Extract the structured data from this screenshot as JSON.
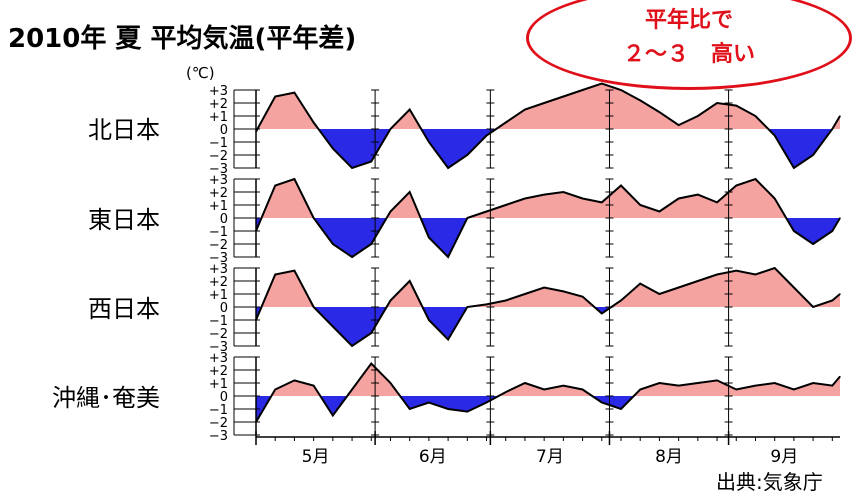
{
  "title": "2010年 夏 平均気温(平年差)",
  "unit_label": "(℃)",
  "badge": {
    "line1": "平年比で",
    "line2": "２～３　高い"
  },
  "source": "出典:気象庁",
  "colors": {
    "positive": "#f4a3a0",
    "negative": "#2a2ae6",
    "line": "#000000",
    "badge": "#e0101a"
  },
  "chart_data": [
    {
      "type": "area",
      "title": "北日本",
      "xlabel": "",
      "ylabel": "(℃)",
      "ylim": [
        -3,
        3
      ],
      "y_ticks": [
        "+3",
        "+2",
        "+1",
        "0",
        "−1",
        "−2",
        "−3"
      ],
      "x_categories": [
        "5月",
        "6月",
        "7月",
        "8月",
        "9月"
      ],
      "x": [
        0,
        5,
        10,
        15,
        20,
        25,
        30,
        35,
        40,
        45,
        50,
        55,
        60,
        65,
        70,
        75,
        80,
        85,
        90,
        95,
        100,
        105,
        110,
        115,
        120,
        125,
        130,
        135,
        140,
        145,
        150,
        152
      ],
      "values": [
        -0.2,
        2.5,
        2.8,
        0.5,
        -1.5,
        -3.0,
        -2.5,
        0.0,
        1.5,
        -1.0,
        -3.0,
        -2.0,
        -0.5,
        0.5,
        1.5,
        2.0,
        2.5,
        3.0,
        3.5,
        3.0,
        2.2,
        1.3,
        0.3,
        1.0,
        2.0,
        1.8,
        1.0,
        -0.5,
        -3.0,
        -2.0,
        0.0,
        1.0
      ]
    },
    {
      "type": "area",
      "title": "東日本",
      "xlabel": "",
      "ylabel": "",
      "ylim": [
        -3,
        3
      ],
      "y_ticks": [
        "+3",
        "+2",
        "+1",
        "0",
        "−1",
        "−2",
        "−3"
      ],
      "x_categories": [
        "5月",
        "6月",
        "7月",
        "8月",
        "9月"
      ],
      "x": [
        0,
        5,
        10,
        15,
        20,
        25,
        30,
        35,
        40,
        45,
        50,
        55,
        60,
        65,
        70,
        75,
        80,
        85,
        90,
        95,
        100,
        105,
        110,
        115,
        120,
        125,
        130,
        135,
        140,
        145,
        150,
        152
      ],
      "values": [
        -1.0,
        2.5,
        3.0,
        0.0,
        -2.0,
        -3.0,
        -2.0,
        0.5,
        2.0,
        -1.5,
        -3.0,
        0.0,
        0.5,
        1.0,
        1.5,
        1.8,
        2.0,
        1.5,
        1.2,
        2.5,
        1.0,
        0.5,
        1.5,
        1.8,
        1.2,
        2.5,
        3.0,
        1.5,
        -1.0,
        -2.0,
        -1.0,
        0.0
      ]
    },
    {
      "type": "area",
      "title": "西日本",
      "xlabel": "",
      "ylabel": "",
      "ylim": [
        -3,
        3
      ],
      "y_ticks": [
        "+3",
        "+2",
        "+1",
        "0",
        "−1",
        "−2",
        "−3"
      ],
      "x_categories": [
        "5月",
        "6月",
        "7月",
        "8月",
        "9月"
      ],
      "x": [
        0,
        5,
        10,
        15,
        20,
        25,
        30,
        35,
        40,
        45,
        50,
        55,
        60,
        65,
        70,
        75,
        80,
        85,
        90,
        95,
        100,
        105,
        110,
        115,
        120,
        125,
        130,
        135,
        140,
        145,
        150,
        152
      ],
      "values": [
        -1.0,
        2.5,
        2.8,
        0.0,
        -1.5,
        -3.0,
        -2.0,
        0.5,
        2.0,
        -1.0,
        -2.5,
        0.0,
        0.2,
        0.5,
        1.0,
        1.5,
        1.2,
        0.8,
        -0.5,
        0.5,
        1.8,
        1.0,
        1.5,
        2.0,
        2.5,
        2.8,
        2.5,
        3.0,
        1.5,
        0.0,
        0.5,
        1.0
      ]
    },
    {
      "type": "area",
      "title": "沖縄･奄美",
      "xlabel": "",
      "ylabel": "",
      "ylim": [
        -3,
        3
      ],
      "y_ticks": [
        "+3",
        "+2",
        "+1",
        "0",
        "−1",
        "−2",
        "−3"
      ],
      "x_categories": [
        "5月",
        "6月",
        "7月",
        "8月",
        "9月"
      ],
      "x": [
        0,
        5,
        10,
        15,
        20,
        25,
        30,
        35,
        40,
        45,
        50,
        55,
        60,
        65,
        70,
        75,
        80,
        85,
        90,
        95,
        100,
        105,
        110,
        115,
        120,
        125,
        130,
        135,
        140,
        145,
        150,
        152
      ],
      "values": [
        -2.0,
        0.5,
        1.2,
        0.8,
        -1.5,
        0.5,
        2.5,
        1.0,
        -1.0,
        -0.5,
        -1.0,
        -1.2,
        -0.5,
        0.3,
        1.0,
        0.5,
        0.8,
        0.5,
        -0.5,
        -1.0,
        0.5,
        1.0,
        0.8,
        1.0,
        1.2,
        0.5,
        0.8,
        1.0,
        0.5,
        1.0,
        0.8,
        1.5
      ]
    }
  ]
}
